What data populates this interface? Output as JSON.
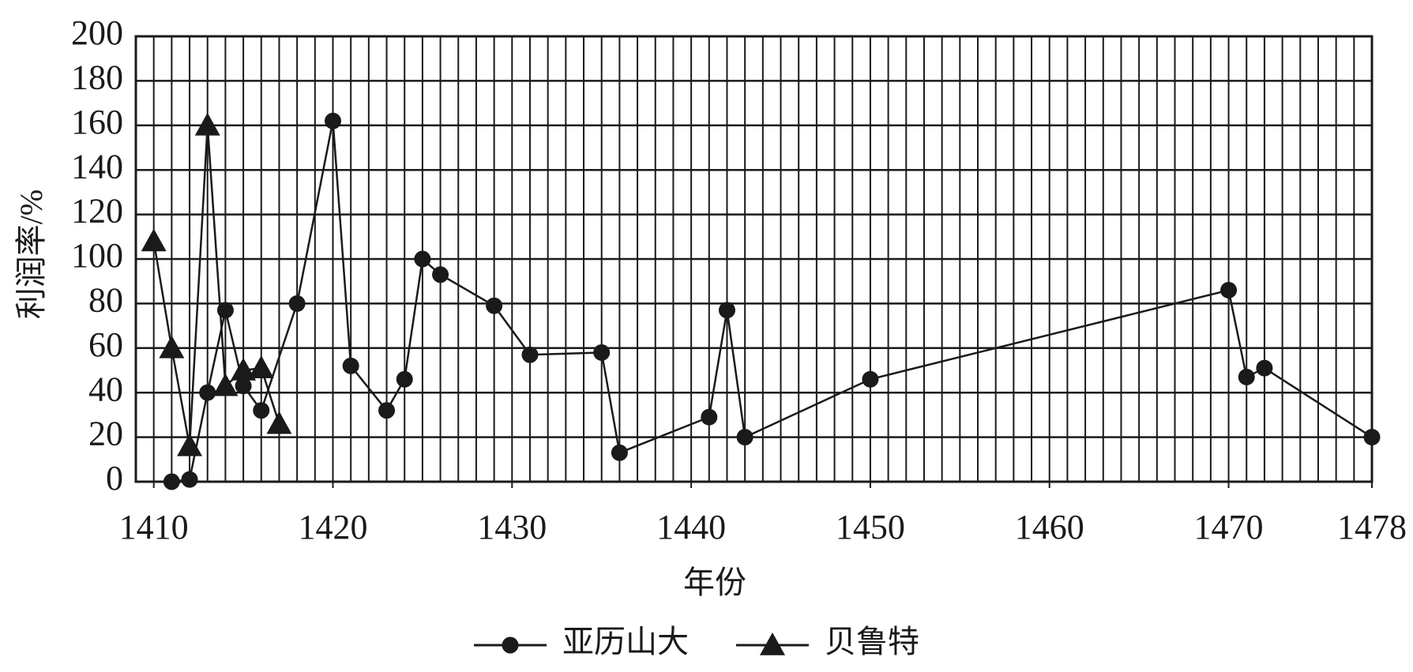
{
  "chart_data": {
    "type": "line",
    "x_label": "年份",
    "y_label": "利润率/%",
    "xlim": [
      1409,
      1478
    ],
    "xticks": [
      1410,
      1420,
      1430,
      1440,
      1450,
      1460,
      1470,
      1478
    ],
    "ylim": [
      0,
      200
    ],
    "yticks": [
      0,
      20,
      40,
      60,
      80,
      100,
      120,
      140,
      160,
      180,
      200
    ],
    "grid": {
      "x_step": 1,
      "y": true
    },
    "legend": "bottom",
    "series": [
      {
        "name": "亚历山大",
        "color": "#1a1a1a",
        "marker": "circle",
        "x": [
          1411,
          1412,
          1413,
          1414,
          1415,
          1416,
          1418,
          1420,
          1421,
          1423,
          1424,
          1425,
          1426,
          1429,
          1431,
          1435,
          1436,
          1441,
          1442,
          1443,
          1450,
          1470,
          1471,
          1472,
          1478
        ],
        "values": [
          0,
          1,
          40,
          77,
          43,
          32,
          80,
          162,
          52,
          32,
          46,
          100,
          93,
          79,
          57,
          58,
          13,
          29,
          77,
          20,
          46,
          86,
          47,
          51,
          20
        ]
      },
      {
        "name": "贝鲁特",
        "color": "#1a1a1a",
        "marker": "triangle",
        "x": [
          1410,
          1411,
          1412,
          1413,
          1414,
          1415,
          1416,
          1417
        ],
        "values": [
          108,
          60,
          16,
          160,
          43,
          50,
          51,
          26
        ]
      }
    ]
  }
}
